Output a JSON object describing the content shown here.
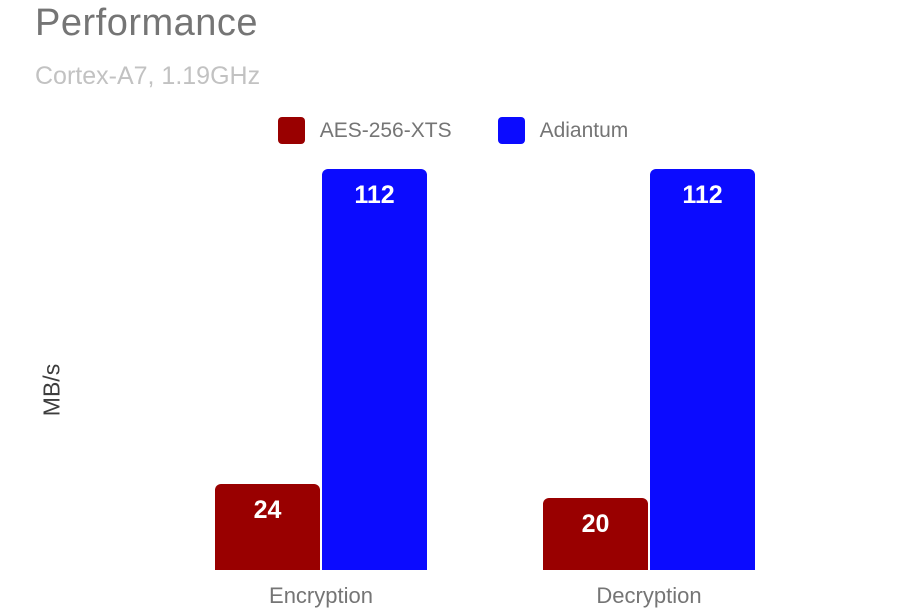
{
  "chart_data": {
    "type": "bar",
    "title": "Performance",
    "subtitle": "Cortex-A7, 1.19GHz",
    "ylabel": "MB/s",
    "xlabel": "",
    "categories": [
      "Encryption",
      "Decryption"
    ],
    "series": [
      {
        "name": "AES-256-XTS",
        "color": "#990000",
        "values": [
          24,
          20
        ]
      },
      {
        "name": "Adiantum",
        "color": "#0b0bff",
        "values": [
          112,
          112
        ]
      }
    ],
    "ylim": [
      0,
      112
    ],
    "grid": false,
    "axes_lines": false,
    "legend_position": "top-center",
    "value_labels": {
      "visible": true,
      "color": "#ffffff",
      "position": "inside-top"
    },
    "text_colors": {
      "title": "#757575",
      "subtitle": "#c2c2c2",
      "legend": "#757575",
      "category": "#757575",
      "ylabel": "#3d3d3d"
    }
  }
}
